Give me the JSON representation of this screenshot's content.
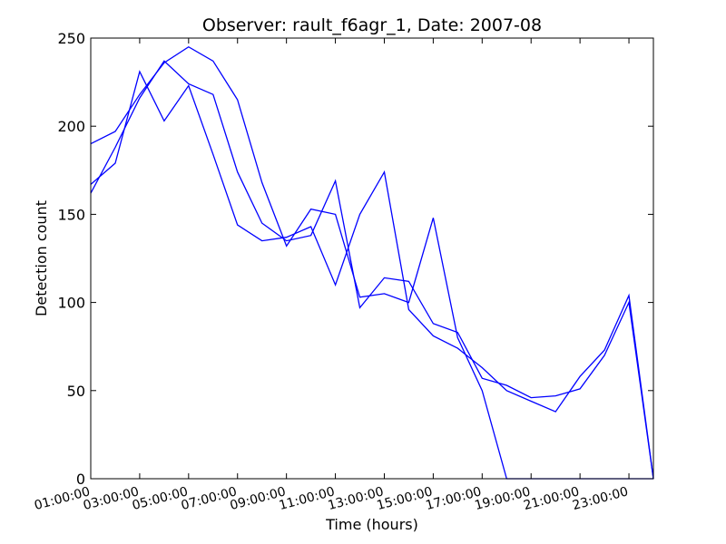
{
  "chart_data": {
    "type": "line",
    "title": "Observer: rault_f6agr_1, Date: 2007-08",
    "xlabel": "Time (hours)",
    "ylabel": "Detection count",
    "x_ticks": [
      "01:00:00",
      "03:00:00",
      "05:00:00",
      "07:00:00",
      "09:00:00",
      "11:00:00",
      "13:00:00",
      "15:00:00",
      "17:00:00",
      "19:00:00",
      "21:00:00",
      "23:00:00"
    ],
    "y_ticks": [
      "0",
      "50",
      "100",
      "150",
      "200",
      "250"
    ],
    "xlim": [
      0,
      23
    ],
    "ylim": [
      0,
      250
    ],
    "grid": false,
    "color": "#0000ff",
    "x": [
      0,
      1,
      2,
      3,
      4,
      5,
      6,
      7,
      8,
      9,
      10,
      11,
      12,
      13,
      14,
      15,
      16,
      17,
      18,
      19,
      20,
      21,
      22,
      23
    ],
    "series": [
      {
        "values": [
          190,
          197,
          218,
          236,
          245,
          237,
          215,
          168,
          132,
          153,
          150,
          103,
          105,
          100,
          148,
          80,
          50,
          0,
          0,
          0,
          0,
          0,
          0,
          0
        ]
      },
      {
        "values": [
          162,
          188,
          216,
          237,
          224,
          218,
          174,
          145,
          135,
          138,
          169,
          97,
          114,
          112,
          88,
          83,
          57,
          53,
          46,
          47,
          51,
          70,
          100,
          0
        ]
      },
      {
        "values": [
          167,
          179,
          231,
          203,
          223,
          184,
          144,
          135,
          137,
          143,
          110,
          150,
          174,
          96,
          81,
          74,
          63,
          50,
          44,
          38,
          58,
          73,
          104,
          0
        ]
      }
    ]
  }
}
